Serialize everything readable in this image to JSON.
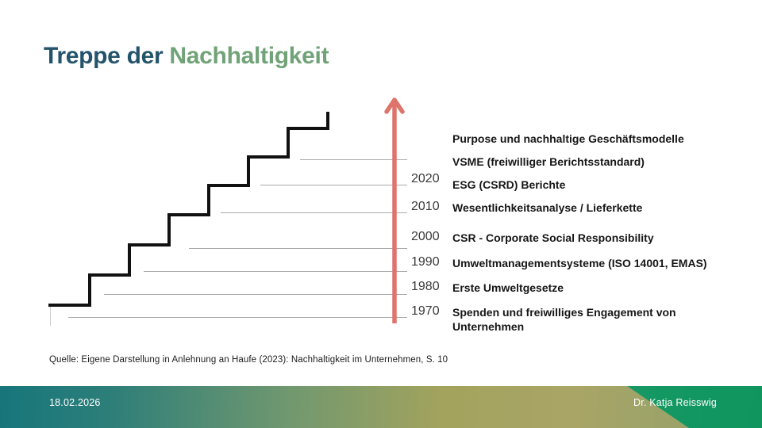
{
  "title": {
    "primary": "Treppe der ",
    "accent": "Nachhaltigkeit"
  },
  "timeline": {
    "rows": [
      {
        "year": "",
        "label": "Purpose und nachhaltige Geschäftsmodelle"
      },
      {
        "year": "",
        "label": "VSME (freiwilliger Berichtsstandard)"
      },
      {
        "year": "2020",
        "label": "ESG (CSRD) Berichte"
      },
      {
        "year": "2010",
        "label": "Wesentlichkeitsanalyse / Lieferkette"
      },
      {
        "year": "2000",
        "label": "CSR - Corporate Social Responsibility"
      },
      {
        "year": "1990",
        "label": "Umweltmanagementsysteme (ISO 14001, EMAS)"
      },
      {
        "year": "1980",
        "label": "Erste Umweltgesetze"
      },
      {
        "year": "1970",
        "label": "Spenden und freiwilliges Engagement von\nUnternehmen"
      }
    ]
  },
  "source_note": "Quelle: Eigene Darstellung in Anlehnung an Haufe (2023): Nachhaltigkeit im Unternehmen, S. 10",
  "footer": {
    "date": "18.02.2026",
    "author": "Dr. Katja Reisswig"
  },
  "colors": {
    "title_primary": "#24546C",
    "title_accent": "#71A378",
    "arrow": "#DE746B",
    "staircase": "#111111",
    "leader_line": "#A9A9A9",
    "footer_teal": "#17767B",
    "footer_olive": "#A3A35D",
    "footer_green": "#1E9E6B"
  }
}
